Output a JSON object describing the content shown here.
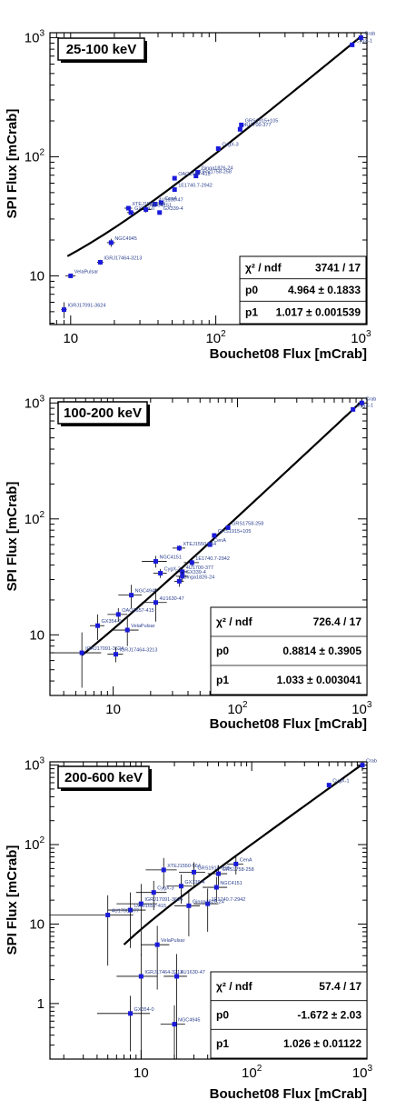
{
  "colors": {
    "marker": "#1a1adb",
    "fit_line": "#000000",
    "label_text": "#2a3f8f"
  },
  "chart_data": [
    {
      "type": "scatter",
      "band": "25-100 keV",
      "xlabel": "Bouchet08 Flux [mCrab]",
      "ylabel": "SPI Flux [mCrab]",
      "log_x": true,
      "log_y": true,
      "xlim": [
        7.2,
        1100
      ],
      "ylim": [
        3.9,
        1100
      ],
      "x_ticks": [
        {
          "v": 10,
          "label": "10"
        },
        {
          "v": 100,
          "label": "10",
          "sup": "2"
        },
        {
          "v": 1000,
          "label": "10",
          "sup": "3"
        }
      ],
      "y_ticks": [
        {
          "v": 10,
          "label": "10"
        },
        {
          "v": 100,
          "label": "10",
          "sup": "2"
        },
        {
          "v": 1000,
          "label": "10",
          "sup": "3"
        }
      ],
      "stats": [
        {
          "label": "χ² / ndf",
          "value": "3741 / 17"
        },
        {
          "label": "p0",
          "value": "4.964 ± 0.1833"
        },
        {
          "label": "p1",
          "value": "1.017 ± 0.001539"
        }
      ],
      "fit": {
        "p0": 4.964,
        "p1": 1.017,
        "x_from": 9.5,
        "x_to": 1000
      },
      "points": [
        {
          "name": "Crab",
          "x": 1000,
          "y": 1000,
          "xerr": 0,
          "yerr": 0
        },
        {
          "name": "CygX-1",
          "x": 870,
          "y": 870,
          "xerr": 0,
          "yerr": 0
        },
        {
          "name": "GRS1915+105",
          "x": 150,
          "y": 185,
          "xerr": 0,
          "yerr": 0
        },
        {
          "name": "4U1700-377",
          "x": 147,
          "y": 170,
          "xerr": 0,
          "yerr": 0
        },
        {
          "name": "CygX-3",
          "x": 104,
          "y": 117,
          "xerr": 0,
          "yerr": 0
        },
        {
          "name": "Ginga1826-24",
          "x": 75,
          "y": 74,
          "xerr": 0,
          "yerr": 0
        },
        {
          "name": "GRS1758-258",
          "x": 73,
          "y": 69,
          "xerr": 0,
          "yerr": 0
        },
        {
          "name": "OAO1657-415",
          "x": 52,
          "y": 66,
          "xerr": 0,
          "yerr": 0
        },
        {
          "name": "1E1740.7-2942",
          "x": 52,
          "y": 53,
          "xerr": 0,
          "yerr": 0
        },
        {
          "name": "4U1630-47",
          "x": 38,
          "y": 40,
          "xerr": 0,
          "yerr": 0
        },
        {
          "name": "CenA",
          "x": 42,
          "y": 41,
          "xerr": 0,
          "yerr": 0
        },
        {
          "name": "XTEJ1550-564",
          "x": 25,
          "y": 37,
          "xerr": 1.5,
          "yerr": 1.5
        },
        {
          "name": "GX354-0",
          "x": 26,
          "y": 34,
          "xerr": 1.5,
          "yerr": 1.5
        },
        {
          "name": "NGC4151",
          "x": 33,
          "y": 36,
          "xerr": 3,
          "yerr": 2
        },
        {
          "name": "GX339-4",
          "x": 41,
          "y": 34,
          "xerr": 0,
          "yerr": 0
        },
        {
          "name": "NGC4945",
          "x": 19,
          "y": 19,
          "xerr": 1.2,
          "yerr": 1.5
        },
        {
          "name": "IGRJ17464-3213",
          "x": 16,
          "y": 13,
          "xerr": 0.8,
          "yerr": 0.6
        },
        {
          "name": "VelaPulsar",
          "x": 10,
          "y": 10,
          "xerr": 0.8,
          "yerr": 0.4
        },
        {
          "name": "IGRJ17091-3624",
          "x": 9,
          "y": 5.2,
          "xerr": 0.4,
          "yerr": 0.8
        }
      ]
    },
    {
      "type": "scatter",
      "band": "100-200 keV",
      "xlabel": "Bouchet08 Flux [mCrab]",
      "ylabel": "SPI Flux [mCrab]",
      "log_x": true,
      "log_y": true,
      "xlim": [
        3.1,
        1100
      ],
      "ylim": [
        3.0,
        1100
      ],
      "x_ticks": [
        {
          "v": 10,
          "label": "10"
        },
        {
          "v": 100,
          "label": "10",
          "sup": "2"
        },
        {
          "v": 1000,
          "label": "10",
          "sup": "3"
        }
      ],
      "y_ticks": [
        {
          "v": 10,
          "label": "10"
        },
        {
          "v": 100,
          "label": "10",
          "sup": "2"
        },
        {
          "v": 1000,
          "label": "10",
          "sup": "3"
        }
      ],
      "stats": [
        {
          "label": "χ² / ndf",
          "value": "726.4 / 17"
        },
        {
          "label": "p0",
          "value": "0.8814 ± 0.3905"
        },
        {
          "label": "p1",
          "value": "1.033 ± 0.003041"
        }
      ],
      "fit": {
        "p0": 0.8814,
        "p1": 1.033,
        "x_from": 5.6,
        "x_to": 1000
      },
      "points": [
        {
          "name": "Crab",
          "x": 1000,
          "y": 1000,
          "xerr": 0,
          "yerr": 0
        },
        {
          "name": "CygX-1",
          "x": 850,
          "y": 880,
          "xerr": 0,
          "yerr": 0
        },
        {
          "name": "GRS1758-258",
          "x": 84,
          "y": 84,
          "xerr": 0,
          "yerr": 0
        },
        {
          "name": "GRS1915+105",
          "x": 65,
          "y": 72,
          "xerr": 2,
          "yerr": 3
        },
        {
          "name": "CenA",
          "x": 60,
          "y": 60,
          "xerr": 2,
          "yerr": 2
        },
        {
          "name": "XTEJ1550-564",
          "x": 34,
          "y": 56,
          "xerr": 4,
          "yerr": 3
        },
        {
          "name": "NGC4151",
          "x": 22,
          "y": 43,
          "xerr": 5,
          "yerr": 5
        },
        {
          "name": "1E1740.7-2942",
          "x": 43,
          "y": 42,
          "xerr": 6,
          "yerr": 3
        },
        {
          "name": "4U1700-377",
          "x": 36,
          "y": 35,
          "xerr": 4,
          "yerr": 3
        },
        {
          "name": "CygX-3",
          "x": 24,
          "y": 34,
          "xerr": 3,
          "yerr": 3
        },
        {
          "name": "GX339-4",
          "x": 36,
          "y": 32,
          "xerr": 4,
          "yerr": 3
        },
        {
          "name": "Ginga1826-24",
          "x": 34,
          "y": 29,
          "xerr": 3,
          "yerr": 3
        },
        {
          "name": "NGC4945",
          "x": 14,
          "y": 22,
          "xerr": 3,
          "yerr": 5
        },
        {
          "name": "4U1630-47",
          "x": 22,
          "y": 19,
          "xerr": 5,
          "yerr": 6
        },
        {
          "name": "OAO1657-415",
          "x": 11,
          "y": 15,
          "xerr": 2,
          "yerr": 2
        },
        {
          "name": "GX354-0",
          "x": 7.5,
          "y": 12,
          "xerr": 1,
          "yerr": 3
        },
        {
          "name": "VelaPulsar",
          "x": 13,
          "y": 11,
          "xerr": 3,
          "yerr": 3
        },
        {
          "name": "IGRJ17091-3624",
          "x": 5.6,
          "y": 7,
          "xerr": 2.4,
          "yerr": 3.5
        },
        {
          "name": "IGRJ17464-3213",
          "x": 10.5,
          "y": 6.8,
          "xerr": 1.5,
          "yerr": 1
        }
      ]
    },
    {
      "type": "scatter",
      "band": "200-600 keV",
      "xlabel": "Bouchet08 Flux [mCrab]",
      "ylabel": "SPI Flux [mCrab]",
      "log_x": true,
      "log_y": true,
      "xlim": [
        1.5,
        1100
      ],
      "ylim": [
        0.2,
        1100
      ],
      "x_ticks": [
        {
          "v": 10,
          "label": "10"
        },
        {
          "v": 100,
          "label": "10",
          "sup": "2"
        },
        {
          "v": 1000,
          "label": "10",
          "sup": "3"
        }
      ],
      "y_ticks": [
        {
          "v": 1,
          "label": "1"
        },
        {
          "v": 10,
          "label": "10"
        },
        {
          "v": 100,
          "label": "10",
          "sup": "2"
        },
        {
          "v": 1000,
          "label": "10",
          "sup": "3"
        }
      ],
      "stats": [
        {
          "label": "χ² / ndf",
          "value": "57.4 / 17"
        },
        {
          "label": "p0",
          "value": "-1.672 ±  2.03"
        },
        {
          "label": "p1",
          "value": "1.026 ± 0.01122"
        }
      ],
      "fit": {
        "p0": -1.672,
        "p1": 1.026,
        "x_from": 7.0,
        "x_to": 1000
      },
      "points": [
        {
          "name": "Crab",
          "x": 1000,
          "y": 1000,
          "xerr": 0,
          "yerr": 0
        },
        {
          "name": "CygX-1",
          "x": 500,
          "y": 560,
          "xerr": 0,
          "yerr": 0
        },
        {
          "name": "CenA",
          "x": 72,
          "y": 57,
          "xerr": 12,
          "yerr": 15
        },
        {
          "name": "XTEJ1550-564",
          "x": 16,
          "y": 48,
          "xerr": 5,
          "yerr": 20
        },
        {
          "name": "GRS1915+105",
          "x": 30,
          "y": 45,
          "xerr": 8,
          "yerr": 15
        },
        {
          "name": "GRS1758-258",
          "x": 50,
          "y": 43,
          "xerr": 10,
          "yerr": 12
        },
        {
          "name": "GX339-4",
          "x": 23,
          "y": 30,
          "xerr": 6,
          "yerr": 12
        },
        {
          "name": "NGC4151",
          "x": 48,
          "y": 29,
          "xerr": 12,
          "yerr": 10
        },
        {
          "name": "CygX-3",
          "x": 13,
          "y": 25,
          "xerr": 4,
          "yerr": 10
        },
        {
          "name": "IGRJ17091-3624",
          "x": 10,
          "y": 18,
          "xerr": 4,
          "yerr": 14
        },
        {
          "name": "1E1740.7-2942",
          "x": 40,
          "y": 18,
          "xerr": 10,
          "yerr": 10
        },
        {
          "name": "Ginga1826-24",
          "x": 27,
          "y": 17,
          "xerr": 7,
          "yerr": 10
        },
        {
          "name": "OAO1657-415",
          "x": 8,
          "y": 15,
          "xerr": 3,
          "yerr": 10
        },
        {
          "name": "4U1700-377",
          "x": 5,
          "y": 13,
          "xerr": 3.5,
          "yerr": 10
        },
        {
          "name": "VelaPulsar",
          "x": 14,
          "y": 5.5,
          "xerr": 4,
          "yerr": 4
        },
        {
          "name": "IGRJ17464-3213",
          "x": 10,
          "y": 2.2,
          "xerr": 4,
          "yerr": 2
        },
        {
          "name": "4U1630-47",
          "x": 21,
          "y": 2.2,
          "xerr": 5,
          "yerr": 2
        },
        {
          "name": "GX354-0",
          "x": 8,
          "y": 0.75,
          "xerr": 4,
          "yerr": 0.5
        },
        {
          "name": "NGC4945",
          "x": 20,
          "y": 0.55,
          "xerr": 5,
          "yerr": 0.4
        }
      ]
    }
  ]
}
